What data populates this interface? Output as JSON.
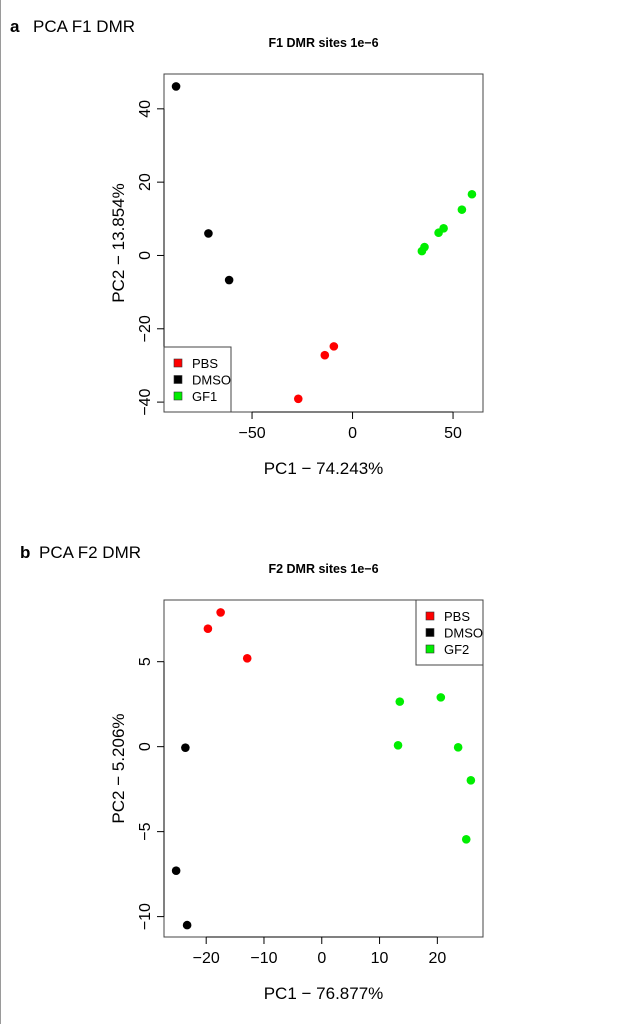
{
  "chart_data": [
    {
      "type": "scatter",
      "panel_letter": "a",
      "panel_title": "PCA F1 DMR",
      "title": "F1 DMR sites 1e−6",
      "xlabel": "PC1 − 74.243%",
      "ylabel": "PC2 − 13.854%",
      "xlim": [
        -93.8,
        64.9
      ],
      "ylim": [
        -42.7,
        49.5
      ],
      "xticks": [
        -50,
        0,
        50
      ],
      "xtick_labels": [
        "−50",
        "0",
        "50"
      ],
      "yticks": [
        -40,
        -20,
        0,
        20,
        40
      ],
      "ytick_labels": [
        "−40",
        "−20",
        "0",
        "20",
        "40"
      ],
      "grid": false,
      "legend_position": "bottom-left",
      "series": [
        {
          "name": "PBS",
          "color": "#ff0000",
          "points": [
            [
              -27.0,
              -39.1
            ],
            [
              -13.8,
              -27.2
            ],
            [
              -9.3,
              -24.8
            ]
          ]
        },
        {
          "name": "DMSO",
          "color": "#000000",
          "points": [
            [
              -87.8,
              46.1
            ],
            [
              -71.7,
              6.0
            ],
            [
              -61.4,
              -6.7
            ]
          ]
        },
        {
          "name": "GF1",
          "color": "#00ee00",
          "points": [
            [
              34.5,
              1.2
            ],
            [
              35.8,
              2.3
            ],
            [
              42.8,
              6.2
            ],
            [
              45.3,
              7.4
            ],
            [
              54.4,
              12.5
            ],
            [
              59.4,
              16.7
            ]
          ]
        }
      ]
    },
    {
      "type": "scatter",
      "panel_letter": "b",
      "panel_title": "PCA F2 DMR",
      "title": "F2 DMR sites 1e−6",
      "xlabel": "PC1 − 76.877%",
      "ylabel": "PC2 − 5.206%",
      "xlim": [
        -27.3,
        27.9
      ],
      "ylim": [
        -11.2,
        8.63
      ],
      "xticks": [
        -20,
        -10,
        0,
        10,
        20
      ],
      "xtick_labels": [
        "−20",
        "−10",
        "0",
        "10",
        "20"
      ],
      "yticks": [
        -10,
        -5,
        0,
        5
      ],
      "ytick_labels": [
        "−10",
        "−5",
        "0",
        "5"
      ],
      "grid": false,
      "legend_position": "top-right",
      "series": [
        {
          "name": "PBS",
          "color": "#ff0000",
          "points": [
            [
              -19.7,
              6.94
            ],
            [
              -17.5,
              7.9
            ],
            [
              -12.9,
              5.2
            ]
          ]
        },
        {
          "name": "DMSO",
          "color": "#000000",
          "points": [
            [
              -23.6,
              -0.06
            ],
            [
              -25.2,
              -7.3
            ],
            [
              -23.3,
              -10.5
            ]
          ]
        },
        {
          "name": "GF2",
          "color": "#00ee00",
          "points": [
            [
              13.5,
              2.65
            ],
            [
              13.2,
              0.08
            ],
            [
              20.6,
              2.9
            ],
            [
              23.6,
              -0.04
            ],
            [
              25.8,
              -1.98
            ],
            [
              25.0,
              -5.45
            ]
          ]
        }
      ]
    }
  ]
}
